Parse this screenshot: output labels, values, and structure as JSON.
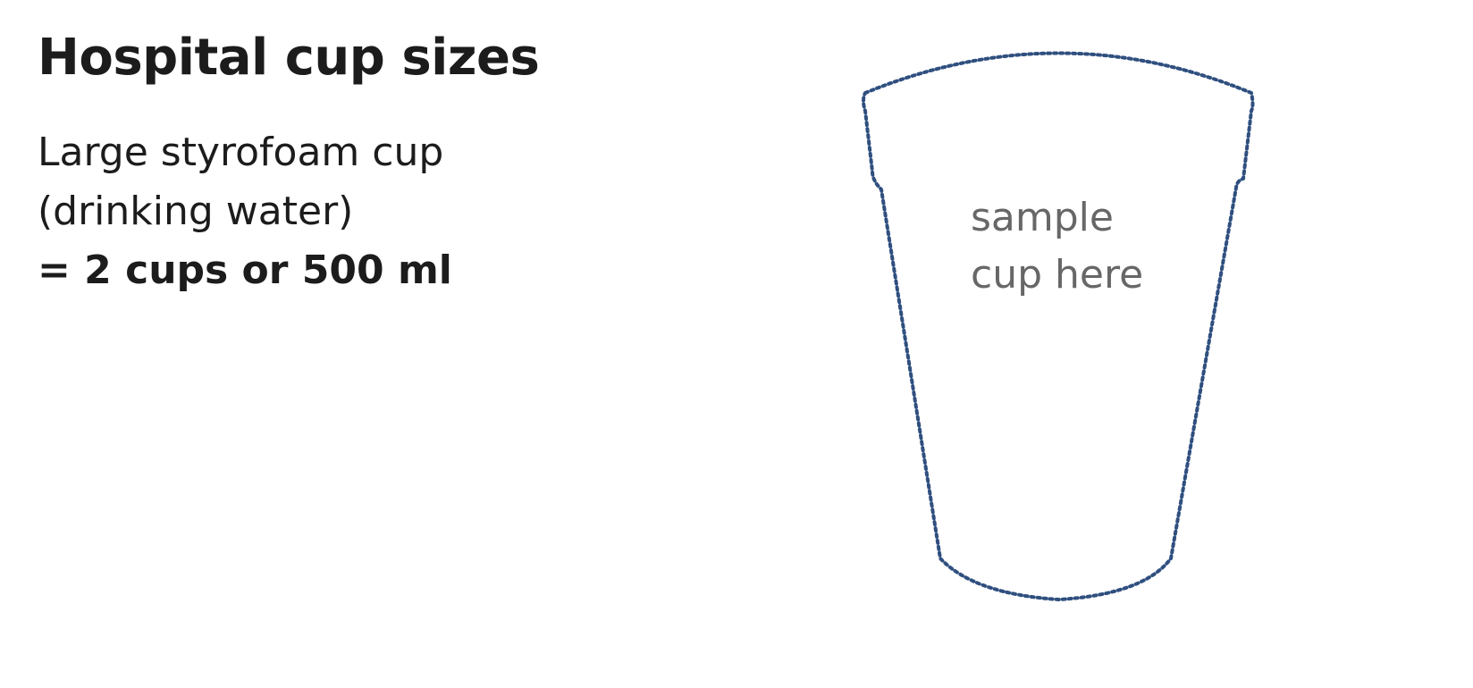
{
  "heading": "Hospital cup sizes",
  "cup": {
    "name_line1": "Large styrofoam cup",
    "name_line2": "(drinking water)",
    "equivalent": "= 2 cups or 500 ml"
  },
  "placeholder": {
    "line1": "sample",
    "line2": "cup here"
  },
  "colors": {
    "outline": "#2f4f7f",
    "placeholder_text": "#676767",
    "text": "#1c1c1c"
  }
}
